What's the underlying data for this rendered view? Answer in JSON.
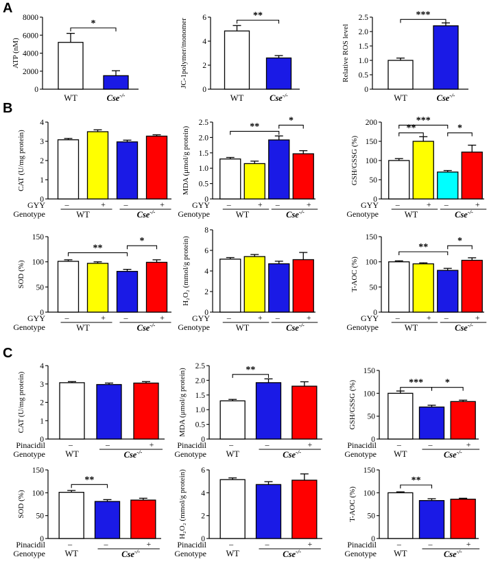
{
  "figure": {
    "panel_letters": [
      "A",
      "B",
      "C"
    ],
    "row_labels": {
      "gyy": "GYY",
      "pinacidil": "Pinacidil",
      "genotype": "Genotype"
    },
    "genotypes": {
      "wt": "WT",
      "cse_base": "Cse",
      "cse_sup": "-/-"
    },
    "pm": {
      "minus": "–",
      "plus": "+"
    },
    "colors": {
      "wt": "#ffffff",
      "yellow": "#ffff00",
      "blue": "#1a1ae6",
      "red": "#ff0000",
      "cyan": "#00ffff",
      "stroke": "#000000"
    }
  },
  "chart_data": [
    {
      "id": "A1",
      "type": "bar",
      "ylabel": "ATP (nM)",
      "ylim": [
        0,
        8000
      ],
      "yticks": [
        "0",
        "2000",
        "4000",
        "6000",
        "8000"
      ],
      "categories": [
        "WT",
        "Cse-/-"
      ],
      "values": [
        5200,
        1500
      ],
      "errors": [
        1000,
        550
      ],
      "colors": [
        "wt",
        "blue"
      ],
      "labels": "cat",
      "sig": [
        {
          "from": 0,
          "to": 1,
          "level": 6800,
          "text": "*"
        }
      ]
    },
    {
      "id": "A2",
      "type": "bar",
      "ylabel": "JC-1polymer/monomer",
      "ylim": [
        0,
        6
      ],
      "yticks": [
        "0",
        "2",
        "4",
        "6"
      ],
      "categories": [
        "WT",
        "Cse-/-"
      ],
      "values": [
        4.85,
        2.6
      ],
      "errors": [
        0.45,
        0.2
      ],
      "colors": [
        "wt",
        "blue"
      ],
      "labels": "cat",
      "sig": [
        {
          "from": 0,
          "to": 1,
          "level": 5.75,
          "text": "**"
        }
      ]
    },
    {
      "id": "A3",
      "type": "bar",
      "ylabel": "Relative ROS level",
      "ylim": [
        0,
        2.5
      ],
      "yticks": [
        "0",
        "0.5",
        "1.0",
        "1.5",
        "2.0",
        "2.5"
      ],
      "categories": [
        "WT",
        "Cse-/-"
      ],
      "values": [
        1.0,
        2.2
      ],
      "errors": [
        0.08,
        0.1
      ],
      "colors": [
        "wt",
        "blue"
      ],
      "labels": "cat",
      "sig": [
        {
          "from": 0,
          "to": 1,
          "level": 2.42,
          "text": "***"
        }
      ]
    },
    {
      "id": "B1",
      "type": "bar",
      "ylabel": "CAT (U/mg protein)",
      "ylim": [
        0,
        4
      ],
      "yticks": [
        "0",
        "1",
        "2",
        "3",
        "4"
      ],
      "categories": [
        "WT –",
        "WT +",
        "Cse-/- –",
        "Cse-/- +"
      ],
      "values": [
        3.08,
        3.5,
        2.97,
        3.27
      ],
      "errors": [
        0.07,
        0.1,
        0.09,
        0.07
      ],
      "colors": [
        "wt",
        "yellow",
        "blue",
        "red"
      ],
      "labels": "gyy",
      "sig": []
    },
    {
      "id": "B2",
      "type": "bar",
      "ylabel": "MDA (μmol/g protein)",
      "ylim": [
        0,
        2.5
      ],
      "yticks": [
        "0",
        "0.5",
        "1.0",
        "1.5",
        "2.0",
        "2.5"
      ],
      "categories": [
        "WT –",
        "WT +",
        "Cse-/- –",
        "Cse-/- +"
      ],
      "values": [
        1.3,
        1.15,
        1.92,
        1.47
      ],
      "errors": [
        0.05,
        0.08,
        0.13,
        0.1
      ],
      "colors": [
        "wt",
        "yellow",
        "blue",
        "red"
      ],
      "labels": "gyy",
      "sig": [
        {
          "from": 0,
          "to": 2,
          "level": 2.2,
          "text": "**"
        },
        {
          "from": 2,
          "to": 3,
          "level": 2.4,
          "text": "*"
        }
      ]
    },
    {
      "id": "B3",
      "type": "bar",
      "ylabel": "GSH/GSSG (%)",
      "ylim": [
        0,
        200
      ],
      "yticks": [
        "0",
        "50",
        "100",
        "150",
        "200"
      ],
      "categories": [
        "WT –",
        "WT +",
        "Cse-/- –",
        "Cse-/- +"
      ],
      "values": [
        100,
        150,
        70,
        122
      ],
      "errors": [
        5,
        12,
        4,
        18
      ],
      "colors": [
        "wt",
        "yellow",
        "cyan",
        "red"
      ],
      "labels": "gyy",
      "sig": [
        {
          "from": 0,
          "to": 1,
          "level": 172,
          "text": "**"
        },
        {
          "from": 0,
          "to": 2,
          "level": 192,
          "text": "***"
        },
        {
          "from": 2,
          "to": 3,
          "level": 172,
          "text": "*"
        }
      ]
    },
    {
      "id": "B4",
      "type": "bar",
      "ylabel": "SOD (%)",
      "ylim": [
        0,
        150
      ],
      "yticks": [
        "0",
        "50",
        "100",
        "150"
      ],
      "categories": [
        "WT –",
        "WT +",
        "Cse-/- –",
        "Cse-/- +"
      ],
      "values": [
        101,
        97,
        81,
        99
      ],
      "errors": [
        3,
        3,
        4,
        5
      ],
      "colors": [
        "wt",
        "yellow",
        "blue",
        "red"
      ],
      "labels": "gyy",
      "sig": [
        {
          "from": 0,
          "to": 2,
          "level": 118,
          "text": "**"
        },
        {
          "from": 2,
          "to": 3,
          "level": 132,
          "text": "*"
        }
      ]
    },
    {
      "id": "B5",
      "type": "bar",
      "ylabel": "H₂O₂ (mmol/g protein)",
      "ylim": [
        0,
        8
      ],
      "yticks": [
        "0",
        "2",
        "4",
        "6",
        "8"
      ],
      "categories": [
        "WT –",
        "WT +",
        "Cse-/- –",
        "Cse-/- +"
      ],
      "values": [
        5.15,
        5.4,
        4.7,
        5.1
      ],
      "errors": [
        0.15,
        0.2,
        0.25,
        0.7
      ],
      "colors": [
        "wt",
        "yellow",
        "blue",
        "red"
      ],
      "labels": "gyy",
      "sig": []
    },
    {
      "id": "B6",
      "type": "bar",
      "ylabel": "T-AOC (%)",
      "ylim": [
        0,
        150
      ],
      "yticks": [
        "0",
        "50",
        "100",
        "150"
      ],
      "categories": [
        "WT –",
        "WT +",
        "Cse-/- –",
        "Cse-/- +"
      ],
      "values": [
        100,
        96,
        83,
        103
      ],
      "errors": [
        2,
        2,
        4,
        5
      ],
      "colors": [
        "wt",
        "yellow",
        "blue",
        "red"
      ],
      "labels": "gyy",
      "sig": [
        {
          "from": 0,
          "to": 2,
          "level": 120,
          "text": "**"
        },
        {
          "from": 2,
          "to": 3,
          "level": 132,
          "text": "*"
        }
      ]
    },
    {
      "id": "C1",
      "type": "bar",
      "ylabel": "CAT (U/mg protein)",
      "ylim": [
        0,
        4
      ],
      "yticks": [
        "0",
        "1",
        "2",
        "3",
        "4"
      ],
      "categories": [
        "WT –",
        "Cse-/- –",
        "Cse-/- +"
      ],
      "values": [
        3.07,
        2.97,
        3.05
      ],
      "errors": [
        0.06,
        0.08,
        0.08
      ],
      "colors": [
        "wt",
        "blue",
        "red"
      ],
      "labels": "pin",
      "sig": []
    },
    {
      "id": "C2",
      "type": "bar",
      "ylabel": "MDA (μmol/g protein)",
      "ylim": [
        0,
        2.5
      ],
      "yticks": [
        "0",
        "0.5",
        "1.0",
        "1.5",
        "2.0",
        "2.5"
      ],
      "categories": [
        "WT –",
        "Cse-/- –",
        "Cse-/- +"
      ],
      "values": [
        1.3,
        1.92,
        1.8
      ],
      "errors": [
        0.05,
        0.13,
        0.15
      ],
      "colors": [
        "wt",
        "blue",
        "red"
      ],
      "labels": "pin",
      "sig": [
        {
          "from": 0,
          "to": 1,
          "level": 2.2,
          "text": "**"
        }
      ]
    },
    {
      "id": "C3",
      "type": "bar",
      "ylabel": "GSH/GSSG (%)",
      "ylim": [
        0,
        150
      ],
      "yticks": [
        "0",
        "50",
        "100",
        "150"
      ],
      "categories": [
        "WT –",
        "Cse-/- –",
        "Cse-/- +"
      ],
      "values": [
        100,
        70,
        82
      ],
      "errors": [
        5,
        4,
        3
      ],
      "colors": [
        "wt",
        "blue",
        "red"
      ],
      "labels": "pin",
      "sig": [
        {
          "from": 0,
          "to": 1,
          "level": 113,
          "text": "***"
        },
        {
          "from": 1,
          "to": 2,
          "level": 113,
          "text": "*"
        }
      ]
    },
    {
      "id": "C4",
      "type": "bar",
      "ylabel": "SOD (%)",
      "ylim": [
        0,
        150
      ],
      "yticks": [
        "0",
        "50",
        "100",
        "150"
      ],
      "categories": [
        "WT –",
        "Cse-/- –",
        "Cse-/- +"
      ],
      "values": [
        101,
        81,
        84
      ],
      "errors": [
        4,
        4,
        4
      ],
      "colors": [
        "wt",
        "blue",
        "red"
      ],
      "labels": "pin",
      "sig": [
        {
          "from": 0,
          "to": 1,
          "level": 118,
          "text": "**"
        }
      ]
    },
    {
      "id": "C5",
      "type": "bar",
      "ylabel": "H₂O₂ (mmol/g protein)",
      "ylim": [
        0,
        6
      ],
      "yticks": [
        "0",
        "2",
        "4",
        "6"
      ],
      "categories": [
        "WT –",
        "Cse-/- –",
        "Cse-/- +"
      ],
      "values": [
        5.15,
        4.72,
        5.1
      ],
      "errors": [
        0.15,
        0.25,
        0.55
      ],
      "colors": [
        "wt",
        "blue",
        "red"
      ],
      "labels": "pin",
      "sig": []
    },
    {
      "id": "C6",
      "type": "bar",
      "ylabel": "T-AOC (%)",
      "ylim": [
        0,
        150
      ],
      "yticks": [
        "0",
        "50",
        "100",
        "150"
      ],
      "categories": [
        "WT –",
        "Cse-/- –",
        "Cse-/- +"
      ],
      "values": [
        100,
        83,
        86
      ],
      "errors": [
        2,
        4,
        2
      ],
      "colors": [
        "wt",
        "blue",
        "red"
      ],
      "labels": "pin",
      "sig": [
        {
          "from": 0,
          "to": 1,
          "level": 117,
          "text": "**"
        }
      ]
    }
  ]
}
